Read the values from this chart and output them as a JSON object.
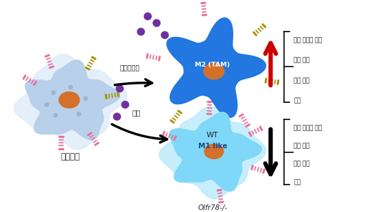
{
  "macrophage_label": "대식세포",
  "receptor_label": "후각수용체",
  "lactic_acid_label": "젖산",
  "wt_label": "WT",
  "wt_cell_label": "M2 (TAM)",
  "olfr_label": "Olfr78-/-",
  "olfr_cell_label": "M1 like",
  "wt_effects": [
    "종양 세포의 증식",
    "종양 침습",
    "종양 진행",
    "전이"
  ],
  "olfr_effects": [
    "종양 세포의 증식",
    "종양 침습",
    "종양 진행",
    "전이"
  ],
  "macro_body_color": "#b8d0ea",
  "macro_nucleus_color": "#d4702a",
  "wt_body_color": "#2277e0",
  "wt_nucleus_color": "#d4702a",
  "olfr_body_color": "#80d8f8",
  "olfr_nucleus_color": "#d4702a",
  "receptor_pink": "#e8709a",
  "receptor_yellow": "#a89000",
  "dot_color": "#7030a0",
  "bg_color": "#ffffff",
  "arrow_up_color": "#cc0000",
  "arrow_down_color": "#000000",
  "figsize": [
    5.67,
    3.09
  ],
  "dpi": 100
}
